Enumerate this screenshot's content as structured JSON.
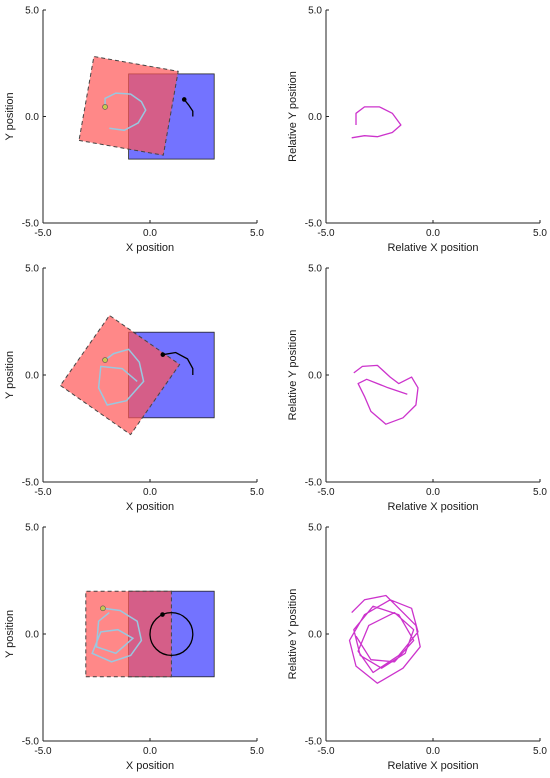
{
  "chart_data": [
    {
      "type": "scatter",
      "xlabel": "X position",
      "ylabel": "Y position",
      "xlim": [
        -5,
        5
      ],
      "ylim": [
        -5,
        5
      ],
      "xticks": [
        "-5.0",
        "0.0",
        "5.0"
      ],
      "yticks": [
        "-5.0",
        "0.0",
        "5.0"
      ],
      "grid": false,
      "fixed_square": {
        "x": [
          -1,
          3
        ],
        "y": [
          -2,
          2
        ],
        "color": "#0000ff"
      },
      "moving_square": {
        "center": [
          -1,
          0.5
        ],
        "size": 4,
        "rotation_deg": -10,
        "color": "#ff5555",
        "border": "dashed"
      },
      "trajectory": {
        "points": [
          [
            1.6,
            0.8
          ],
          [
            1.8,
            0.55
          ],
          [
            2.0,
            0.25
          ],
          [
            2.0,
            0
          ]
        ],
        "color": "#000000"
      },
      "relative_path_overlay": {
        "points": [
          [
            -2.1,
            0.45
          ],
          [
            -2.1,
            0.85
          ],
          [
            -1.6,
            1.1
          ],
          [
            -0.9,
            1.05
          ],
          [
            -0.4,
            0.7
          ],
          [
            -0.2,
            0.3
          ],
          [
            -0.55,
            -0.3
          ],
          [
            -1.2,
            -0.65
          ],
          [
            -1.9,
            -0.55
          ]
        ],
        "color": "#99c8e0"
      }
    },
    {
      "type": "line",
      "xlabel": "Relative X position",
      "ylabel": "Relative Y position",
      "xlim": [
        -5,
        5
      ],
      "ylim": [
        -5,
        5
      ],
      "xticks": [
        "-5.0",
        "0.0",
        "5.0"
      ],
      "yticks": [
        "-5.0",
        "0.0",
        "5.0"
      ],
      "grid": false,
      "series": [
        {
          "color": "#cc33cc",
          "x": [
            -3.6,
            -3.6,
            -3.2,
            -2.5,
            -1.9,
            -1.5,
            -1.9,
            -2.6,
            -3.2,
            -3.8
          ],
          "y": [
            -0.4,
            0.15,
            0.45,
            0.45,
            0.15,
            -0.4,
            -0.75,
            -0.95,
            -0.9,
            -1.0
          ]
        }
      ]
    },
    {
      "type": "scatter",
      "xlabel": "X position",
      "ylabel": "Y position",
      "xlim": [
        -5,
        5
      ],
      "ylim": [
        -5,
        5
      ],
      "xticks": [
        "-5.0",
        "0.0",
        "5.0"
      ],
      "yticks": [
        "-5.0",
        "0.0",
        "5.0"
      ],
      "grid": false,
      "fixed_square": {
        "x": [
          -1,
          3
        ],
        "y": [
          -2,
          2
        ],
        "color": "#0000ff"
      },
      "moving_square": {
        "center": [
          -1.4,
          0
        ],
        "size": 4,
        "rotation_deg": -35,
        "color": "#ff5555",
        "border": "dashed"
      },
      "trajectory": {
        "points": [
          [
            0.6,
            0.95
          ],
          [
            1.2,
            1.05
          ],
          [
            1.75,
            0.75
          ],
          [
            2.0,
            0.3
          ],
          [
            2.0,
            0
          ]
        ],
        "color": "#000000"
      },
      "relative_path_overlay": {
        "points": [
          [
            -2.1,
            0.7
          ],
          [
            -1.7,
            1.0
          ],
          [
            -1.0,
            1.2
          ],
          [
            -0.5,
            0.6
          ],
          [
            -0.3,
            -0.3
          ],
          [
            -1.1,
            -1.2
          ],
          [
            -2.0,
            -1.4
          ],
          [
            -2.4,
            -0.6
          ],
          [
            -2.3,
            0.4
          ],
          [
            -1.3,
            0.3
          ],
          [
            -0.6,
            -0.3
          ]
        ],
        "color": "#99c8e0"
      }
    },
    {
      "type": "line",
      "xlabel": "Relative X position",
      "ylabel": "Relative Y position",
      "xlim": [
        -5,
        5
      ],
      "ylim": [
        -5,
        5
      ],
      "xticks": [
        "-5.0",
        "0.0",
        "5.0"
      ],
      "yticks": [
        "-5.0",
        "0.0",
        "5.0"
      ],
      "grid": false,
      "series": [
        {
          "color": "#cc33cc",
          "x": [
            -3.7,
            -3.3,
            -2.6,
            -2.0,
            -1.6,
            -1.0,
            -0.7,
            -0.8,
            -1.4,
            -2.2,
            -2.9,
            -3.2,
            -3.5,
            -3.1,
            -2.1,
            -1.2
          ],
          "y": [
            0.1,
            0.4,
            0.45,
            -0.1,
            -0.4,
            -0.1,
            -0.6,
            -1.4,
            -2.0,
            -2.3,
            -1.7,
            -1.0,
            -0.4,
            -0.2,
            -0.6,
            -0.9
          ]
        }
      ]
    },
    {
      "type": "scatter",
      "xlabel": "X position",
      "ylabel": "Y position",
      "xlim": [
        -5,
        5
      ],
      "ylim": [
        -5,
        5
      ],
      "xticks": [
        "-5.0",
        "0.0",
        "5.0"
      ],
      "yticks": [
        "-5.0",
        "0.0",
        "5.0"
      ],
      "grid": false,
      "fixed_square": {
        "x": [
          -1,
          3
        ],
        "y": [
          -2,
          2
        ],
        "color": "#0000ff"
      },
      "moving_square": {
        "center": [
          -1,
          0
        ],
        "size": 4,
        "rotation_deg": 0,
        "color": "#ff5555",
        "border": "dashed"
      },
      "trajectory": {
        "type": "circle",
        "center": [
          1,
          0
        ],
        "radius": 1,
        "color": "#000000"
      },
      "relative_path_overlay": {
        "points": [
          [
            -2.2,
            1.2
          ],
          [
            -1.4,
            1.1
          ],
          [
            -0.6,
            0.6
          ],
          [
            -0.4,
            -0.3
          ],
          [
            -0.9,
            -1.0
          ],
          [
            -1.8,
            -1.3
          ],
          [
            -2.7,
            -0.9
          ],
          [
            -2.3,
            0.1
          ],
          [
            -1.5,
            0.2
          ],
          [
            -0.8,
            -0.2
          ],
          [
            -1.6,
            -0.9
          ],
          [
            -2.5,
            -0.6
          ],
          [
            -2.4,
            0.6
          ],
          [
            -1.9,
            1.0
          ]
        ],
        "color": "#99c8e0"
      }
    },
    {
      "type": "line",
      "xlabel": "Relative X position",
      "ylabel": "Relative Y position",
      "xlim": [
        -5,
        5
      ],
      "ylim": [
        -5,
        5
      ],
      "xticks": [
        "-5.0",
        "0.0",
        "5.0"
      ],
      "yticks": [
        "-5.0",
        "0.0",
        "5.0"
      ],
      "grid": false,
      "series": [
        {
          "color": "#cc33cc",
          "x": [
            -3.8,
            -3.2,
            -2.2,
            -1.6,
            -0.8,
            -0.6,
            -1.4,
            -2.6,
            -3.6,
            -3.9,
            -3.2,
            -2.0,
            -1.0,
            -0.7,
            -1.6,
            -2.8,
            -3.5,
            -3.0,
            -1.8,
            -0.9,
            -1.3,
            -2.4,
            -3.4,
            -3.7,
            -2.8,
            -1.6,
            -0.9,
            -1.8,
            -2.9,
            -3.6
          ],
          "y": [
            1.0,
            1.6,
            1.8,
            1.2,
            0.4,
            -0.6,
            -1.6,
            -2.3,
            -1.5,
            -0.3,
            0.9,
            1.6,
            1.2,
            0.1,
            -1.0,
            -1.8,
            -0.8,
            0.4,
            1.0,
            0.2,
            -0.9,
            -1.6,
            -1.0,
            0.2,
            1.3,
            0.9,
            -0.3,
            -1.3,
            -1.2,
            -0.1
          ]
        }
      ]
    }
  ]
}
